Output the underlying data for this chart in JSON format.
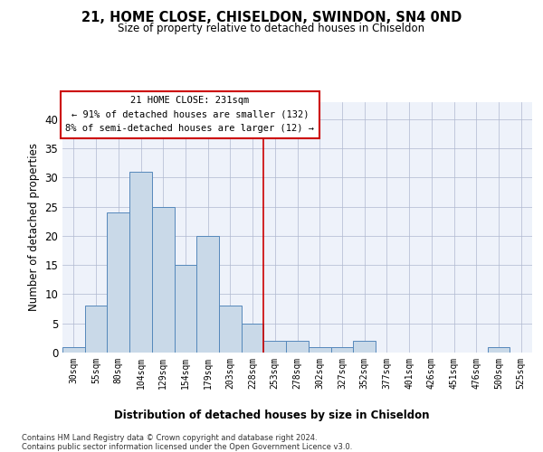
{
  "title": "21, HOME CLOSE, CHISELDON, SWINDON, SN4 0ND",
  "subtitle": "Size of property relative to detached houses in Chiseldon",
  "xlabel_bottom": "Distribution of detached houses by size in Chiseldon",
  "ylabel": "Number of detached properties",
  "categories": [
    "30sqm",
    "55sqm",
    "80sqm",
    "104sqm",
    "129sqm",
    "154sqm",
    "179sqm",
    "203sqm",
    "228sqm",
    "253sqm",
    "278sqm",
    "302sqm",
    "327sqm",
    "352sqm",
    "377sqm",
    "401sqm",
    "426sqm",
    "451sqm",
    "476sqm",
    "500sqm",
    "525sqm"
  ],
  "values": [
    1,
    8,
    24,
    31,
    25,
    15,
    20,
    8,
    5,
    2,
    2,
    1,
    1,
    2,
    0,
    0,
    0,
    0,
    0,
    1,
    0
  ],
  "bar_color": "#c9d9e8",
  "bar_edge_color": "#5588bb",
  "annotation_text": "21 HOME CLOSE: 231sqm\n← 91% of detached houses are smaller (132)\n8% of semi-detached houses are larger (12) →",
  "vline_x": 8.5,
  "vline_color": "#cc0000",
  "annotation_box_color": "#cc0000",
  "background_color": "#eef2fa",
  "grid_color": "#b0b8d0",
  "footer_text": "Contains HM Land Registry data © Crown copyright and database right 2024.\nContains public sector information licensed under the Open Government Licence v3.0.",
  "ylim": [
    0,
    43
  ],
  "yticks": [
    0,
    5,
    10,
    15,
    20,
    25,
    30,
    35,
    40
  ]
}
